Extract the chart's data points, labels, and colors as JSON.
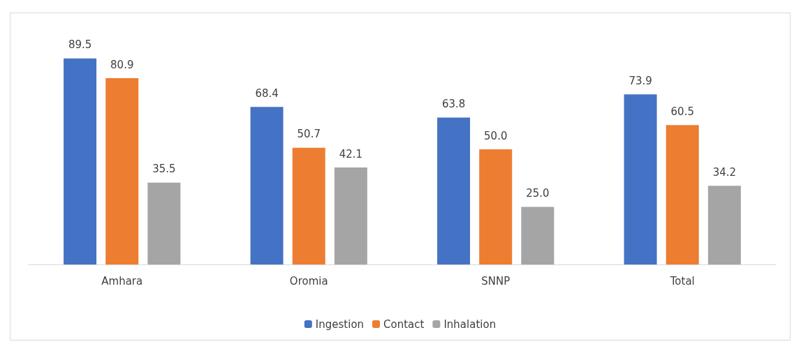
{
  "chart_data": {
    "type": "bar",
    "categories": [
      "Amhara",
      "Oromia",
      "SNNP",
      "Total"
    ],
    "series": [
      {
        "name": "Ingestion",
        "color": "#4472c4",
        "values": [
          89.5,
          68.4,
          63.8,
          73.9
        ],
        "value_labels": [
          "89.5",
          "68.4",
          "63.8",
          "73.9"
        ]
      },
      {
        "name": "Contact",
        "color": "#ed7d31",
        "values": [
          80.9,
          50.7,
          50.0,
          60.5
        ],
        "value_labels": [
          "80.9",
          "50.7",
          "50.0",
          "60.5"
        ]
      },
      {
        "name": "Inhalation",
        "color": "#a5a5a5",
        "values": [
          35.5,
          42.1,
          25.0,
          34.2
        ],
        "value_labels": [
          "35.5",
          "42.1",
          "25.0",
          "34.2"
        ]
      }
    ],
    "legend": "bottom"
  }
}
